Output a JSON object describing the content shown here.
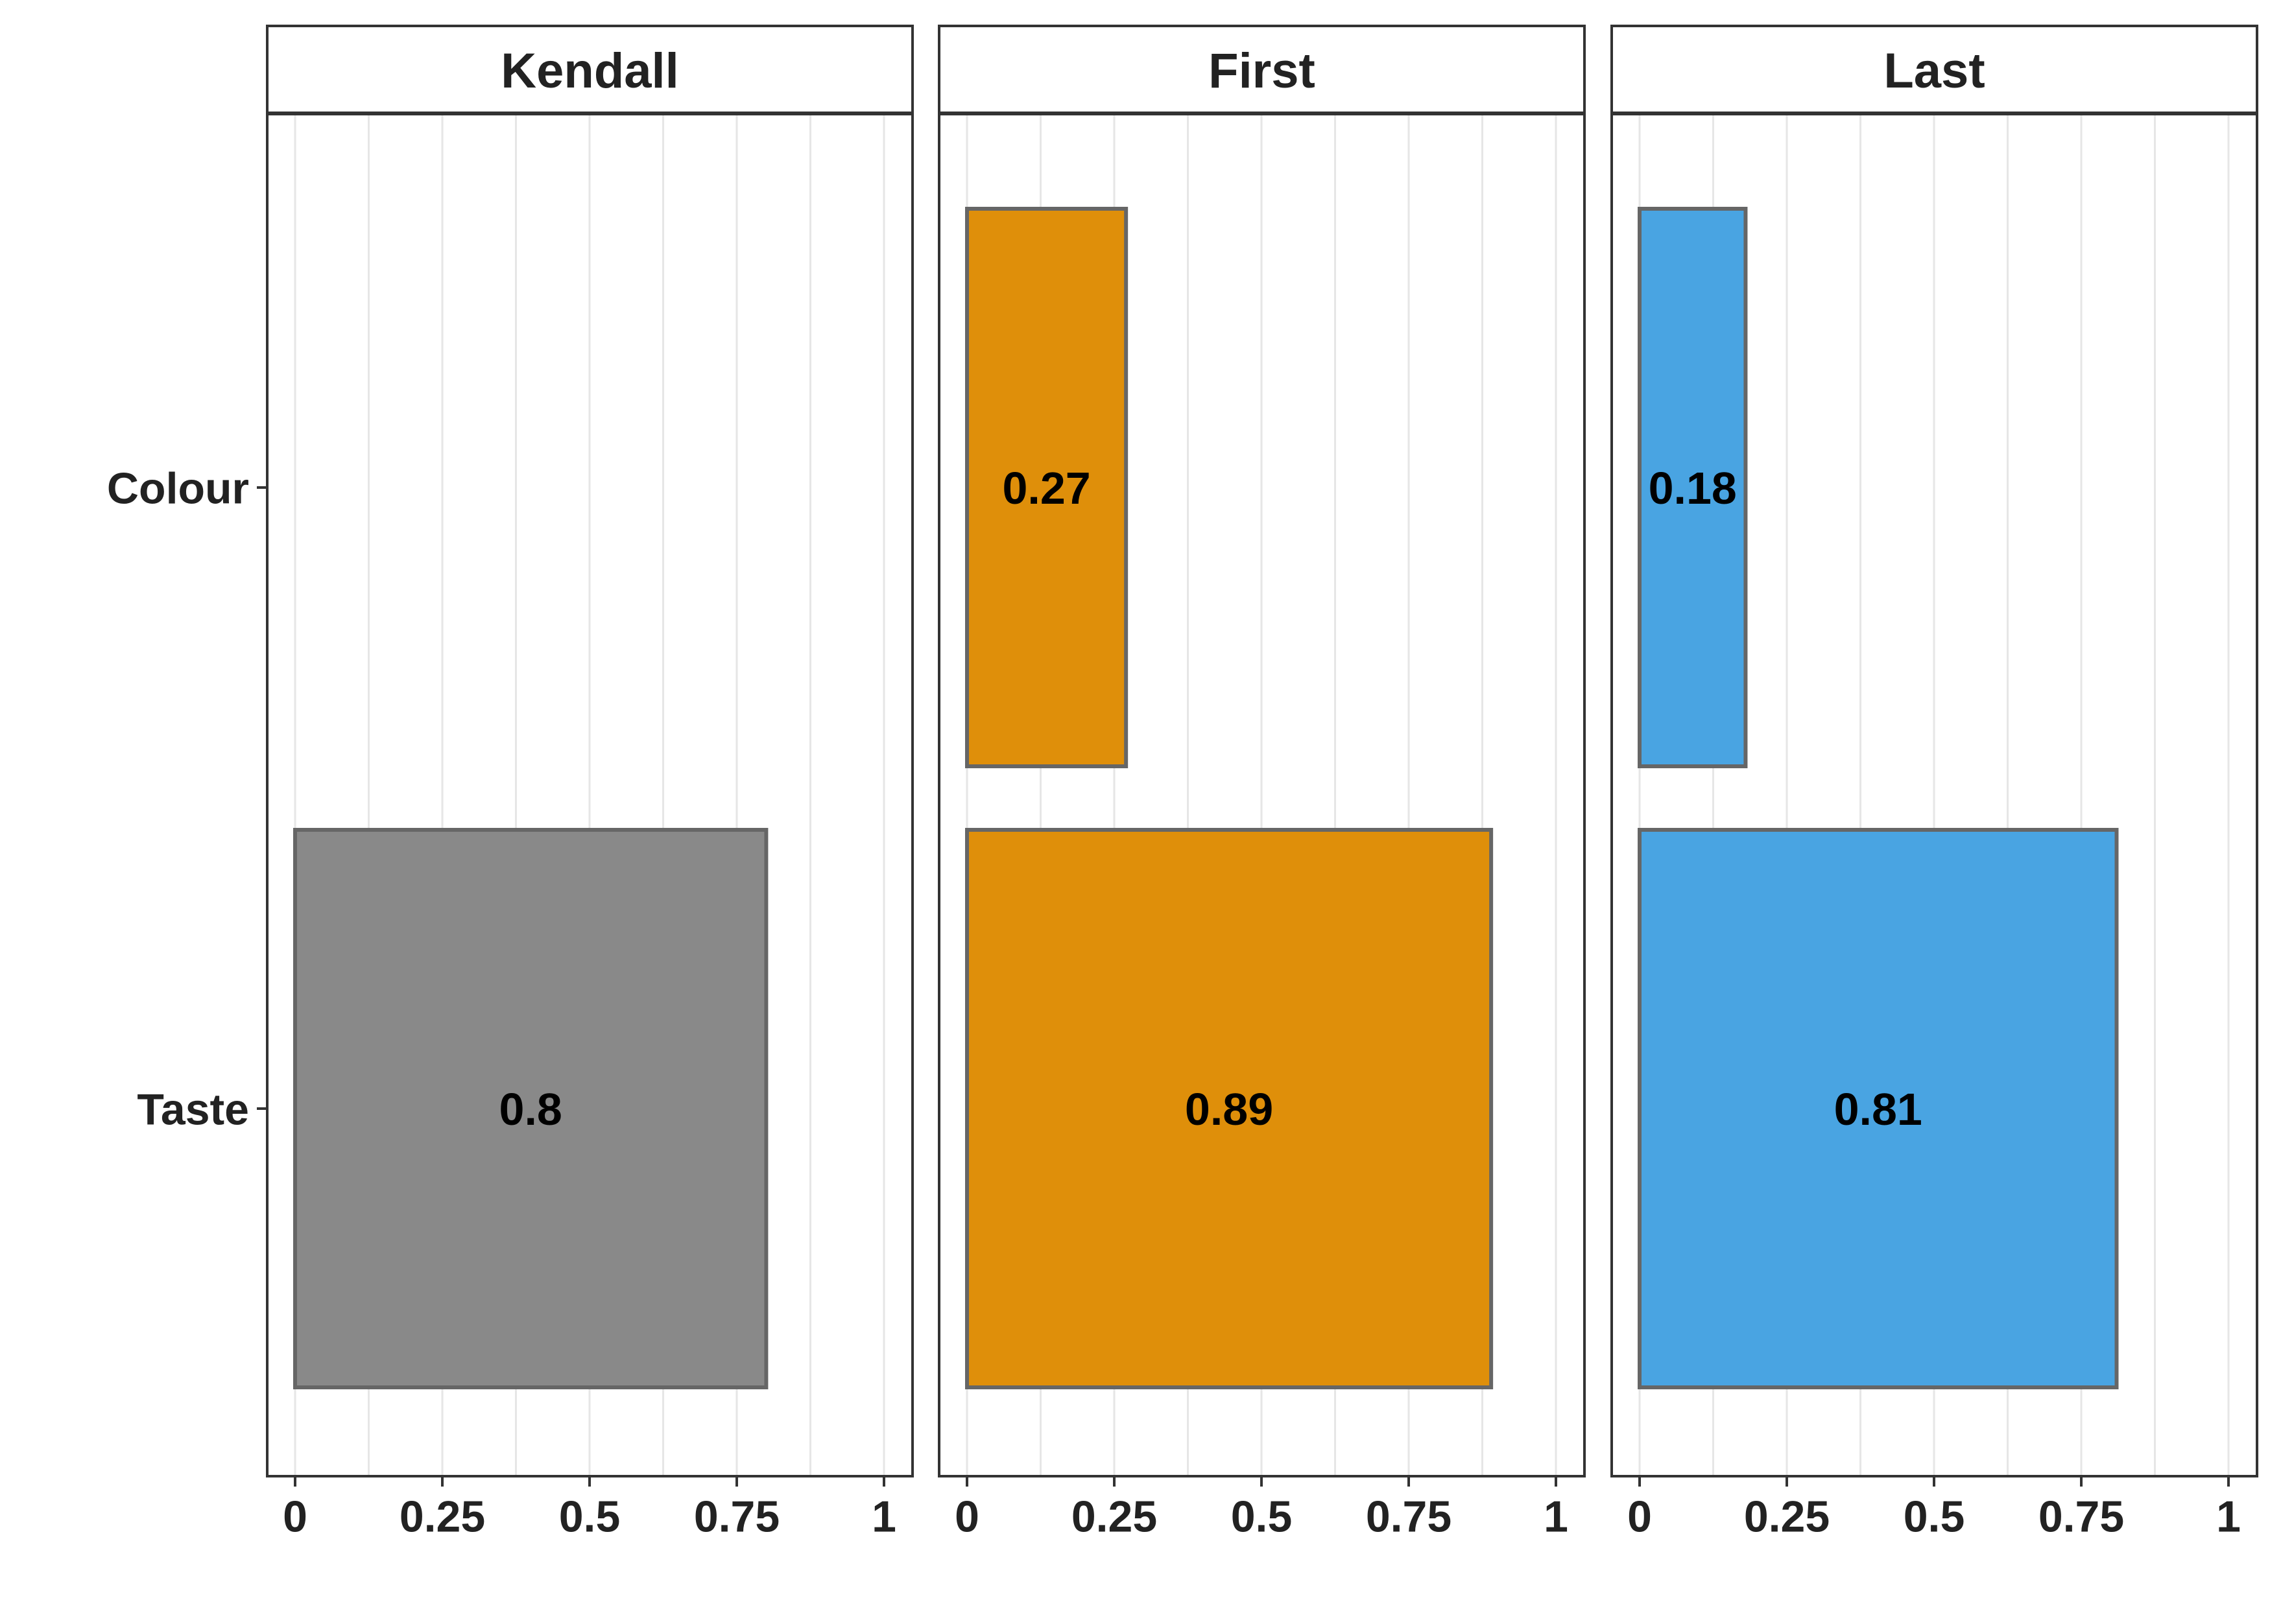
{
  "chart_data": {
    "type": "bar",
    "orientation": "horizontal",
    "categories": [
      "Colour",
      "Taste"
    ],
    "xlim": [
      0,
      1
    ],
    "x_ticks": [
      {
        "value": 0,
        "label": "0"
      },
      {
        "value": 0.25,
        "label": "0.25"
      },
      {
        "value": 0.5,
        "label": "0.5"
      },
      {
        "value": 0.75,
        "label": "0.75"
      },
      {
        "value": 1,
        "label": "1"
      }
    ],
    "grid": true,
    "facets": [
      {
        "name": "Kendall",
        "color": "#898989",
        "values": [
          null,
          0.8
        ],
        "labels": [
          "",
          "0.8"
        ]
      },
      {
        "name": "First",
        "color": "#DF8F0A",
        "values": [
          0.27,
          0.89
        ],
        "labels": [
          "0.27",
          "0.89"
        ]
      },
      {
        "name": "Last",
        "color": "#49A4E2",
        "values": [
          0.18,
          0.81
        ],
        "labels": [
          "0.18",
          "0.81"
        ]
      }
    ],
    "bar_outline_color": "#666666"
  }
}
